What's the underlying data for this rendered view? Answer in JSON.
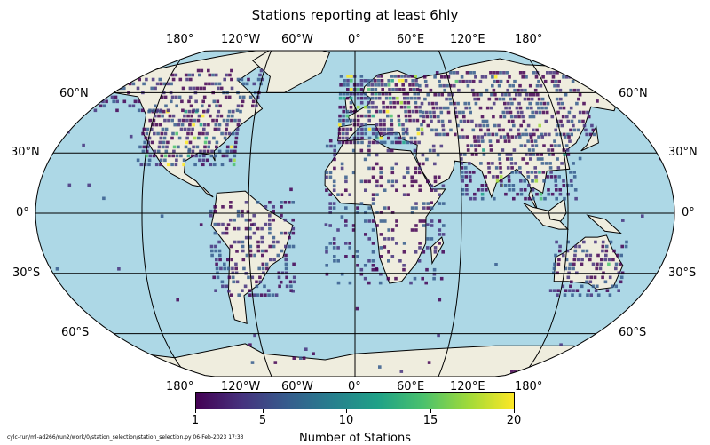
{
  "title": "Stations reporting at least 6hly",
  "projection": "Robinson",
  "colors": {
    "ocean": "#add8e6",
    "land": "#efedde",
    "coast": "#000000",
    "grid": "#000000",
    "colormap": [
      "#440154",
      "#46327e",
      "#365c8d",
      "#277f8e",
      "#1fa187",
      "#4ac16d",
      "#a0da39",
      "#fde725"
    ]
  },
  "gridlines": {
    "top_longitudes": [
      "180°",
      "120°W",
      "60°W",
      "0°",
      "60°E",
      "120°E",
      "180°"
    ],
    "bottom_longitudes": [
      "180°",
      "120°W",
      "60°W",
      "0°",
      "60°E",
      "120°E",
      "180°"
    ],
    "left_latitudes": [
      "60°N",
      "30°N",
      "0°",
      "30°S",
      "60°S"
    ],
    "right_latitudes": [
      "60°N",
      "30°N",
      "0°",
      "30°S",
      "60°S"
    ]
  },
  "colorbar": {
    "label": "Number of Stations",
    "range": [
      1,
      20
    ],
    "ticks": [
      "1",
      "5",
      "10",
      "15",
      "20"
    ]
  },
  "footer": "cylc-run/ml-ad266/run2/work/0/station_selection/station_selection.py   06-Feb-2023 17:33"
}
